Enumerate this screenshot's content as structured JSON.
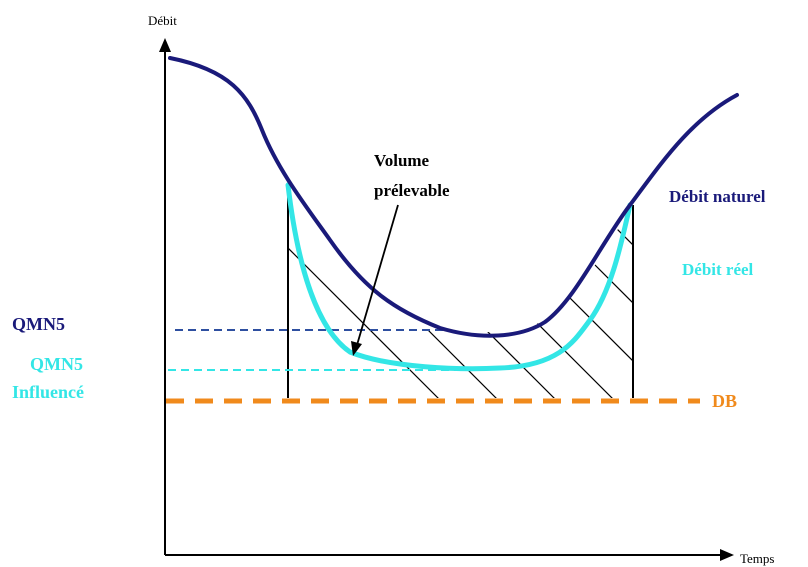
{
  "axes": {
    "y_label": "Débit",
    "x_label": "Temps"
  },
  "annotations": {
    "volume_line1": "Volume",
    "volume_line2": "prélevable",
    "qmn5": "QMN5",
    "qmn5_influence_line1": "QMN5",
    "qmn5_influence_line2": "Influencé",
    "db": "DB"
  },
  "legend": {
    "debit_naturel": "Débit naturel",
    "debit_reel": "Débit réel"
  },
  "colors": {
    "naturel": "#1a1a7a",
    "reel": "#33e6e6",
    "qmn5": "#2e4fa0",
    "db": "#f08a1c",
    "axes": "#000000",
    "hatch": "#000000"
  }
}
